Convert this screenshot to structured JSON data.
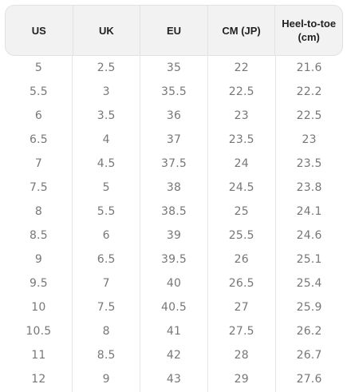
{
  "table": {
    "columns": [
      "US",
      "UK",
      "EU",
      "CM (JP)",
      "Heel-to-toe\n(cm)"
    ],
    "rows": [
      [
        "5",
        "2.5",
        "35",
        "22",
        "21.6"
      ],
      [
        "5.5",
        "3",
        "35.5",
        "22.5",
        "22.2"
      ],
      [
        "6",
        "3.5",
        "36",
        "23",
        "22.5"
      ],
      [
        "6.5",
        "4",
        "37",
        "23.5",
        "23"
      ],
      [
        "7",
        "4.5",
        "37.5",
        "24",
        "23.5"
      ],
      [
        "7.5",
        "5",
        "38",
        "24.5",
        "23.8"
      ],
      [
        "8",
        "5.5",
        "38.5",
        "25",
        "24.1"
      ],
      [
        "8.5",
        "6",
        "39",
        "25.5",
        "24.6"
      ],
      [
        "9",
        "6.5",
        "39.5",
        "26",
        "25.1"
      ],
      [
        "9.5",
        "7",
        "40",
        "26.5",
        "25.4"
      ],
      [
        "10",
        "7.5",
        "40.5",
        "27",
        "25.9"
      ],
      [
        "10.5",
        "8",
        "41",
        "27.5",
        "26.2"
      ],
      [
        "11",
        "8.5",
        "42",
        "28",
        "26.7"
      ],
      [
        "12",
        "9",
        "43",
        "29",
        "27.6"
      ]
    ]
  },
  "colors": {
    "header_bg": "#f2f2f2",
    "header_text": "#222222",
    "cell_text": "#777777",
    "divider": "#e6e6e6"
  }
}
